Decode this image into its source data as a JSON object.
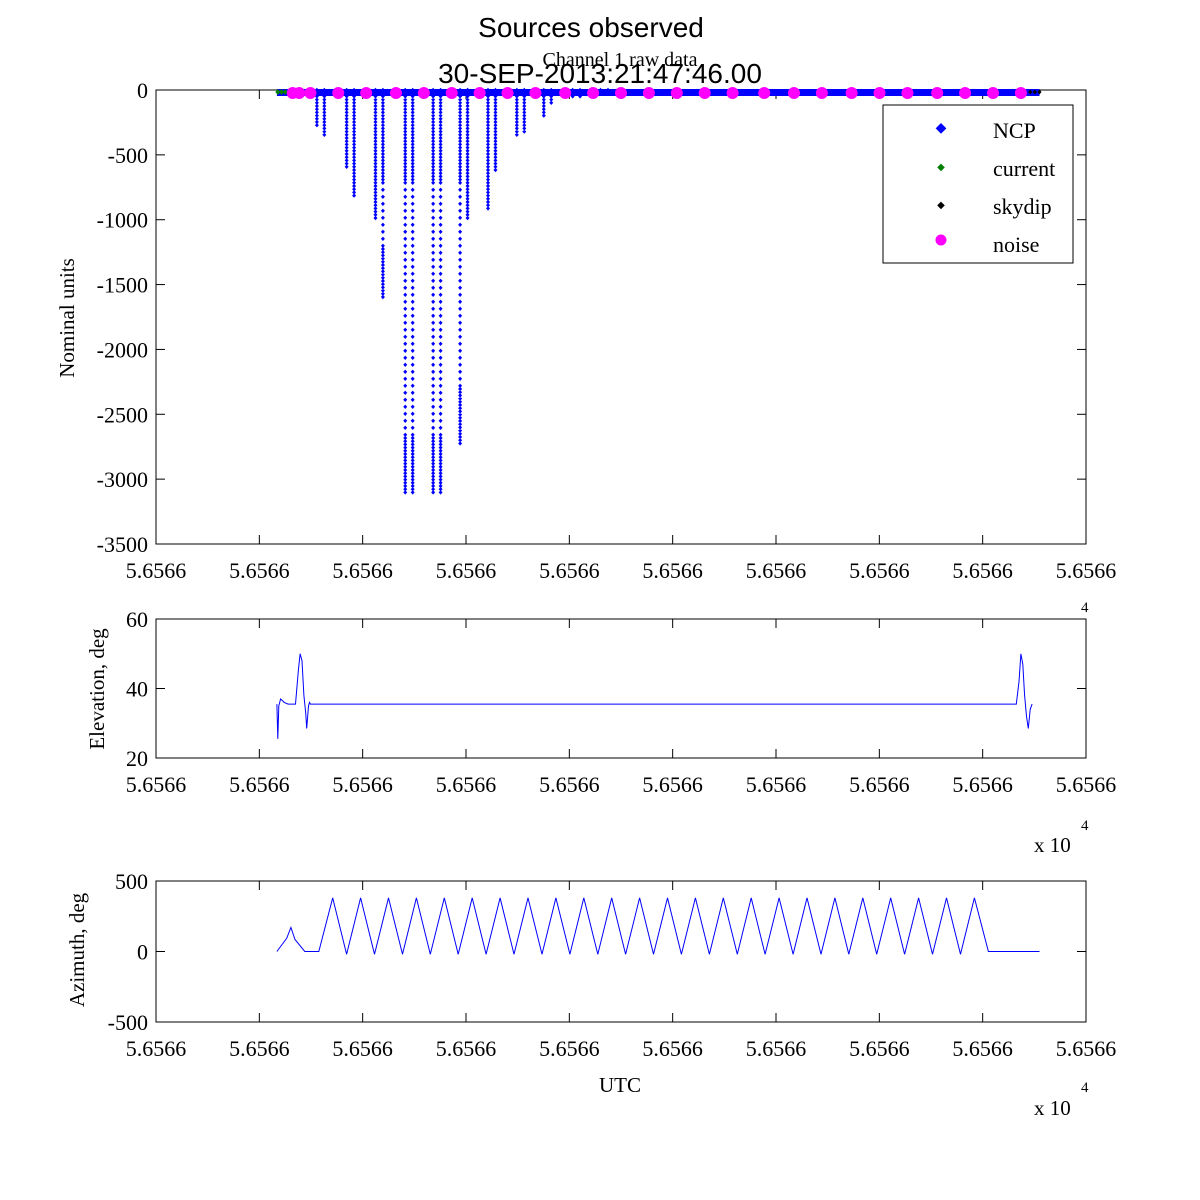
{
  "title": "Sources observed",
  "subtitle": "30-SEP-2013:21:47:46.00",
  "colors": {
    "ncp": "#0000ff",
    "current": "#007f00",
    "skydip": "#000000",
    "noise": "#ff00ff",
    "axis": "#000000"
  },
  "chart_data": [
    {
      "type": "scatter",
      "title": "Channel 1 raw data",
      "xlabel": "",
      "ylabel": "Nominal units",
      "xlim": [
        0,
        1
      ],
      "ylim": [
        -3500,
        0
      ],
      "yticks": [
        "0",
        "-500",
        "-1000",
        "-1500",
        "-2000",
        "-2500",
        "-3000",
        "-3500"
      ],
      "ytick_values": [
        0,
        -500,
        -1000,
        -1500,
        -2000,
        -2500,
        -3000,
        -3500
      ],
      "xtick_labels": [
        "5.6566",
        "5.6566",
        "5.6566",
        "5.6566",
        "5.6566",
        "5.6566",
        "5.6566",
        "5.6566",
        "5.6566",
        "5.6566"
      ],
      "legend": [
        "NCP",
        "current",
        "skydip",
        "noise"
      ],
      "legend_position": "top-right",
      "ncp_dips": [
        {
          "x": 0.173,
          "min": -280
        },
        {
          "x": 0.181,
          "min": -350
        },
        {
          "x": 0.205,
          "min": -600
        },
        {
          "x": 0.213,
          "min": -820
        },
        {
          "x": 0.236,
          "min": -990
        },
        {
          "x": 0.244,
          "min": -1620
        },
        {
          "x": 0.268,
          "min": -3110
        },
        {
          "x": 0.276,
          "min": -3110
        },
        {
          "x": 0.298,
          "min": -3110
        },
        {
          "x": 0.306,
          "min": -3110
        },
        {
          "x": 0.327,
          "min": -2730
        },
        {
          "x": 0.335,
          "min": -990
        },
        {
          "x": 0.357,
          "min": -920
        },
        {
          "x": 0.365,
          "min": -630
        },
        {
          "x": 0.388,
          "min": -370
        },
        {
          "x": 0.396,
          "min": -330
        },
        {
          "x": 0.417,
          "min": -220
        },
        {
          "x": 0.425,
          "min": -120
        },
        {
          "x": 0.448,
          "min": -60
        },
        {
          "x": 0.456,
          "min": -50
        },
        {
          "x": 0.478,
          "min": -40
        },
        {
          "x": 0.486,
          "min": -30
        }
      ],
      "ncp_band": [
        0.13,
        0.95
      ],
      "current_points": [
        0.131,
        0.135,
        0.139,
        0.145
      ],
      "skydip_points": [
        0.94,
        0.945,
        0.95
      ],
      "noise_points": [
        0.147,
        0.154,
        0.166,
        0.196,
        0.226,
        0.258,
        0.288,
        0.318,
        0.348,
        0.378,
        0.408,
        0.44,
        0.47,
        0.5,
        0.53,
        0.56,
        0.59,
        0.62,
        0.654,
        0.686,
        0.716,
        0.748,
        0.778,
        0.808,
        0.84,
        0.87,
        0.9,
        0.93
      ]
    },
    {
      "type": "line",
      "title": "",
      "xlabel": "",
      "ylabel": "Elevation, deg",
      "xlim": [
        0,
        1
      ],
      "ylim": [
        20,
        60
      ],
      "yticks": [
        "60",
        "40",
        "20"
      ],
      "ytick_values": [
        60,
        40,
        20
      ],
      "xtick_labels": [
        "5.6566",
        "5.6566",
        "5.6566",
        "5.6566",
        "5.6566",
        "5.6566",
        "5.6566",
        "5.6566",
        "5.6566",
        "5.6566"
      ],
      "x_exponent": "4",
      "x_multiplier": "x 10",
      "series": [
        {
          "name": "Elevation",
          "x": [
            0.13,
            0.131,
            0.132,
            0.134,
            0.138,
            0.142,
            0.146,
            0.15,
            0.153,
            0.155,
            0.157,
            0.159,
            0.161,
            0.162,
            0.164,
            0.165,
            0.166,
            0.9,
            0.915,
            0.92,
            0.925,
            0.928,
            0.93,
            0.932,
            0.934,
            0.936,
            0.938,
            0.94,
            0.942
          ],
          "y": [
            35.5,
            25.5,
            35,
            37,
            36,
            35.5,
            35.5,
            35.5,
            45,
            50,
            48,
            38,
            33,
            28.5,
            35,
            36,
            35.5,
            35.5,
            35.5,
            35.5,
            35.5,
            42,
            50,
            47,
            38,
            32,
            28.5,
            34,
            35.5
          ]
        }
      ]
    },
    {
      "type": "line",
      "title": "",
      "xlabel": "UTC",
      "ylabel": "Azimuth, deg",
      "xlim": [
        0,
        1
      ],
      "ylim": [
        -500,
        500
      ],
      "yticks": [
        "500",
        "0",
        "-500"
      ],
      "ytick_values": [
        500,
        0,
        -500
      ],
      "xtick_labels": [
        "5.6566",
        "5.6566",
        "5.6566",
        "5.6566",
        "5.6566",
        "5.6566",
        "5.6566",
        "5.6566",
        "5.6566",
        "5.6566"
      ],
      "x_exponent": "4",
      "x_multiplier": "x 10",
      "bump": {
        "x0": 0.13,
        "x1": 0.16,
        "peak": 170
      },
      "wave": {
        "x_start": 0.175,
        "period": 0.03,
        "count": 24,
        "peak": 380,
        "trough": -20,
        "x_end": 0.95
      }
    }
  ]
}
